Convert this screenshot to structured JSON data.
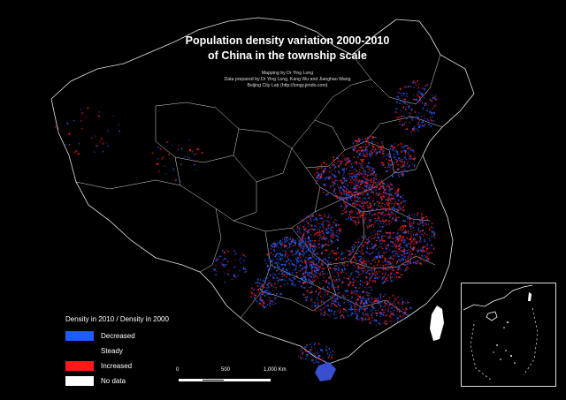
{
  "title_line1": "Population density variation 2000-2010",
  "title_line2": "of China in the township scale",
  "credits": {
    "line1": "Mapping by Dr Ying Long",
    "line2": "Data prepared by Dr Ying Long, Kang Wu and Jianghao Wang",
    "line3": "Beijing City Lab (http://longy.jimdo.com)"
  },
  "legend": {
    "title": "Density in 2010 / Density in 2000",
    "items": [
      {
        "label": "Decreased",
        "color": "#1f5cff"
      },
      {
        "label": "Steady",
        "color": "#000000"
      },
      {
        "label": "Increased",
        "color": "#ff1a1a"
      },
      {
        "label": "No data",
        "color": "#ffffff"
      }
    ]
  },
  "scale": {
    "ticks": [
      "0",
      "500",
      "1,000 Km"
    ]
  },
  "colors": {
    "decreased": "#1f5cff",
    "increased": "#ff1a1a",
    "outline": "#e6e6e6"
  }
}
